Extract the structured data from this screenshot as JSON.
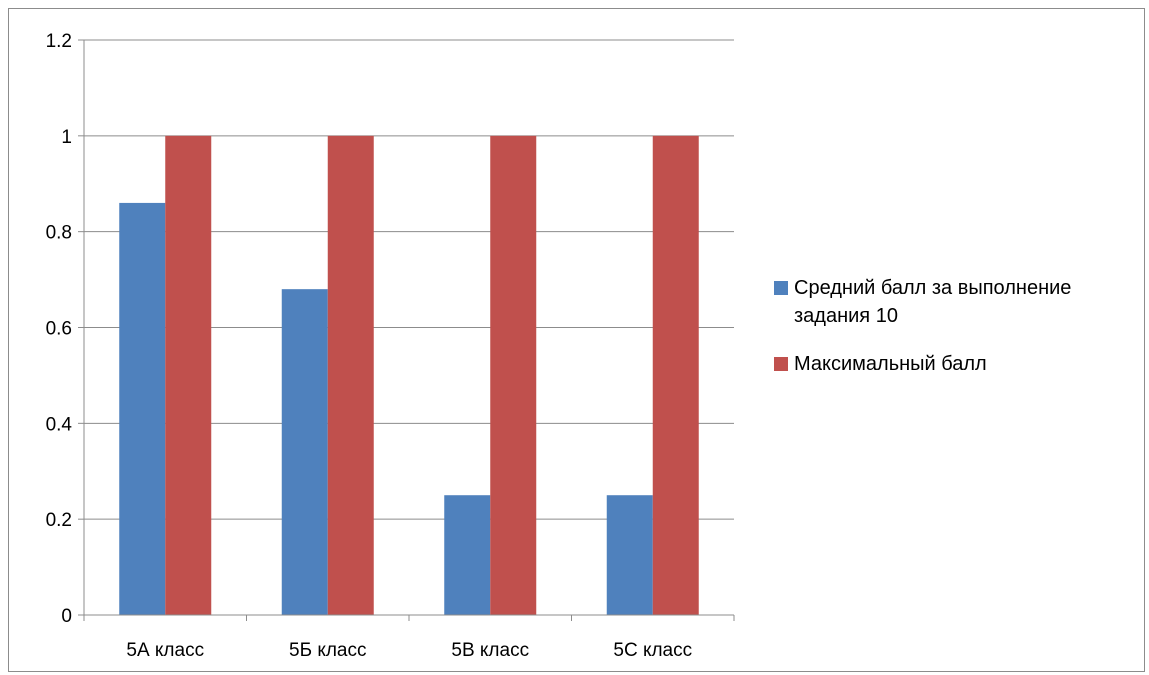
{
  "chart_data": {
    "type": "bar",
    "categories": [
      "5А класс",
      "5Б класс",
      "5В класс",
      "5С класс"
    ],
    "series": [
      {
        "name": "Средний балл за выполнение задания 10",
        "values": [
          0.86,
          0.68,
          0.25,
          0.25
        ],
        "color": "#4F81BD"
      },
      {
        "name": "Максимальный балл",
        "values": [
          1,
          1,
          1,
          1
        ],
        "color": "#C0504D"
      }
    ],
    "y_ticks": [
      "0",
      "0.2",
      "0.4",
      "0.6",
      "0.8",
      "1",
      "1.2"
    ],
    "ylim": [
      0,
      1.2
    ],
    "grid": true,
    "legend": "right",
    "title": "",
    "xlabel": "",
    "ylabel": ""
  }
}
